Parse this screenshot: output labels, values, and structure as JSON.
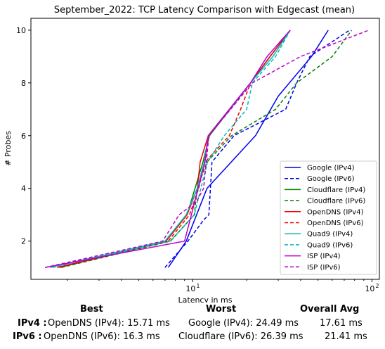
{
  "chart_data": {
    "type": "line",
    "title": "September_2022: TCP Latency Comparison with Edgecast (mean)",
    "xlabel": "Latency in ms",
    "ylabel": "# Probes",
    "xscale": "log",
    "xlim": [
      1.25,
      110
    ],
    "ylim": [
      0.55,
      10.45
    ],
    "xticks": [
      10,
      100
    ],
    "xtick_labels": [
      "10¹",
      "10²"
    ],
    "yticks": [
      2,
      4,
      6,
      8,
      10
    ],
    "grid": false,
    "legend_position": "lower-right",
    "series": [
      {
        "name": "Google (IPv4)",
        "color": "#0000ee",
        "style": "solid",
        "points": [
          [
            7.3,
            1
          ],
          [
            9.2,
            2
          ],
          [
            12.0,
            4
          ],
          [
            22.4,
            6
          ],
          [
            30,
            7.5
          ],
          [
            46,
            9
          ],
          [
            57,
            10
          ]
        ]
      },
      {
        "name": "Google (IPv6)",
        "color": "#0000ee",
        "style": "dashed",
        "points": [
          [
            7.0,
            1
          ],
          [
            9.4,
            2
          ],
          [
            11.5,
            2.8
          ],
          [
            12.3,
            3
          ],
          [
            12.8,
            5
          ],
          [
            17,
            6
          ],
          [
            33,
            7
          ],
          [
            38,
            8
          ],
          [
            45,
            9
          ],
          [
            75,
            10
          ]
        ]
      },
      {
        "name": "Cloudflare (IPv4)",
        "color": "#008000",
        "style": "solid",
        "points": [
          [
            1.8,
            1
          ],
          [
            7.1,
            2
          ],
          [
            9.3,
            3
          ],
          [
            10.3,
            4
          ],
          [
            11.4,
            5
          ],
          [
            12.4,
            6
          ],
          [
            21,
            8
          ],
          [
            27,
            9
          ],
          [
            35,
            10
          ]
        ]
      },
      {
        "name": "Cloudflare (IPv6)",
        "color": "#008000",
        "style": "dashed",
        "points": [
          [
            1.85,
            1
          ],
          [
            7.5,
            2
          ],
          [
            10.2,
            3
          ],
          [
            10.6,
            4
          ],
          [
            12.0,
            5
          ],
          [
            16.5,
            6
          ],
          [
            29,
            7
          ],
          [
            38,
            8
          ],
          [
            60,
            9
          ],
          [
            77,
            10
          ]
        ]
      },
      {
        "name": "OpenDNS (IPv4)",
        "color": "#ee0000",
        "style": "solid",
        "points": [
          [
            1.75,
            1
          ],
          [
            7.1,
            2
          ],
          [
            9.3,
            3
          ],
          [
            10.6,
            4
          ],
          [
            11.0,
            5
          ],
          [
            12.2,
            6
          ],
          [
            21,
            8
          ],
          [
            27,
            9
          ],
          [
            35,
            10
          ]
        ]
      },
      {
        "name": "OpenDNS (IPv6)",
        "color": "#ee0000",
        "style": "dashed",
        "points": [
          [
            1.8,
            1
          ],
          [
            7.3,
            2
          ],
          [
            9.6,
            3
          ],
          [
            10.8,
            4
          ],
          [
            11.7,
            5
          ],
          [
            16.0,
            6
          ],
          [
            18.5,
            7
          ],
          [
            21,
            8
          ],
          [
            27,
            9
          ],
          [
            35,
            10
          ]
        ]
      },
      {
        "name": "Quad9 (IPv4)",
        "color": "#00bbbb",
        "style": "solid",
        "points": [
          [
            1.6,
            1
          ],
          [
            7.0,
            2
          ],
          [
            9.2,
            3
          ],
          [
            10.6,
            4
          ],
          [
            11.6,
            5
          ],
          [
            12.2,
            6
          ],
          [
            21,
            8
          ],
          [
            28,
            9
          ],
          [
            35,
            10
          ]
        ]
      },
      {
        "name": "Quad9 (IPv6)",
        "color": "#00bbbb",
        "style": "dashed",
        "points": [
          [
            1.65,
            1
          ],
          [
            7.5,
            2
          ],
          [
            10.2,
            3
          ],
          [
            11.1,
            4
          ],
          [
            12.1,
            5
          ],
          [
            15.0,
            6
          ],
          [
            20.0,
            7
          ],
          [
            21.5,
            8
          ],
          [
            29,
            9
          ],
          [
            35,
            10
          ]
        ]
      },
      {
        "name": "ISP (IPv4)",
        "color": "#bb00cc",
        "style": "solid",
        "points": [
          [
            1.5,
            1
          ],
          [
            9.0,
            2
          ],
          [
            11.7,
            5
          ],
          [
            12.2,
            6
          ],
          [
            21,
            8
          ],
          [
            26,
            9
          ],
          [
            35,
            10
          ]
        ]
      },
      {
        "name": "ISP (IPv6)",
        "color": "#bb00cc",
        "style": "dashed",
        "points": [
          [
            1.5,
            1
          ],
          [
            6.8,
            2
          ],
          [
            8.4,
            3
          ],
          [
            10.5,
            3.5
          ],
          [
            11.5,
            4
          ],
          [
            11.9,
            5
          ],
          [
            12.3,
            6
          ],
          [
            21.5,
            8
          ],
          [
            40,
            9
          ],
          [
            96,
            10
          ]
        ]
      }
    ]
  },
  "summary": {
    "headers": {
      "best": "Best",
      "worst": "Worst",
      "avg": "Overall Avg"
    },
    "rows": [
      {
        "label": "IPv4 :",
        "best": "OpenDNS (IPv4): 15.71 ms",
        "worst": "Google (IPv4): 24.49 ms",
        "avg": "17.61 ms"
      },
      {
        "label": "IPv6 :",
        "best": "OpenDNS (IPv6): 16.3 ms",
        "worst": "Cloudflare (IPv6): 26.39 ms",
        "avg": "21.41 ms"
      }
    ]
  }
}
